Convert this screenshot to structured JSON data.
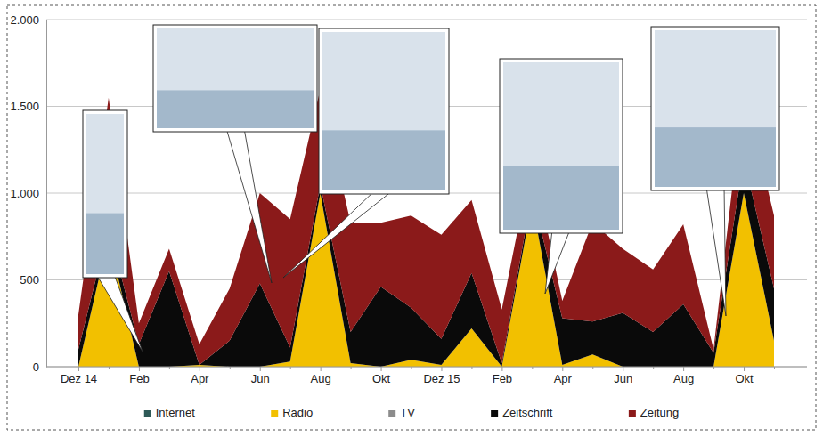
{
  "chart_data": {
    "type": "area",
    "stacked": true,
    "grid": true,
    "legend": "bottom",
    "categories": [
      "Dez 14",
      null,
      "Feb",
      null,
      "Apr",
      null,
      "Jun",
      null,
      "Aug",
      null,
      "Okt",
      null,
      "Dez 15",
      null,
      "Feb",
      null,
      "Apr",
      null,
      "Jun",
      null,
      "Aug",
      null,
      "Okt",
      null
    ],
    "ylim": [
      0,
      2000
    ],
    "yticks": [
      0,
      500,
      {
        "value": 1000,
        "label": "1.000"
      },
      {
        "value": 1500,
        "label": "1.500"
      },
      {
        "value": 2000,
        "label": "2.000"
      }
    ],
    "series": [
      {
        "name": "Internet",
        "color": "#2e5a57",
        "values": [
          0,
          0,
          0,
          0,
          0,
          0,
          0,
          0,
          0,
          0,
          0,
          0,
          0,
          0,
          0,
          0,
          0,
          0,
          0,
          0,
          0,
          0,
          0,
          0
        ]
      },
      {
        "name": "Radio",
        "color": "#f2c000",
        "values": [
          0,
          750,
          0,
          0,
          10,
          0,
          0,
          30,
          1000,
          20,
          0,
          40,
          10,
          220,
          0,
          950,
          10,
          70,
          0,
          0,
          0,
          0,
          1000,
          150
        ]
      },
      {
        "name": "TV",
        "color": "#8c8c8c",
        "values": [
          0,
          0,
          0,
          0,
          0,
          0,
          0,
          0,
          0,
          0,
          0,
          0,
          0,
          0,
          0,
          0,
          0,
          0,
          0,
          0,
          0,
          0,
          0,
          0
        ]
      },
      {
        "name": "Zeitschrift",
        "color": "#0a0a0a",
        "values": [
          100,
          50,
          130,
          550,
          0,
          150,
          480,
          80,
          50,
          180,
          460,
          300,
          150,
          320,
          20,
          50,
          270,
          190,
          310,
          200,
          360,
          80,
          200,
          300
        ]
      },
      {
        "name": "Zeitung",
        "color": "#8b1a1a",
        "values": [
          200,
          750,
          120,
          130,
          120,
          300,
          520,
          740,
          550,
          630,
          370,
          530,
          600,
          420,
          310,
          200,
          100,
          570,
          370,
          360,
          460,
          20,
          400,
          420
        ]
      }
    ]
  }
}
